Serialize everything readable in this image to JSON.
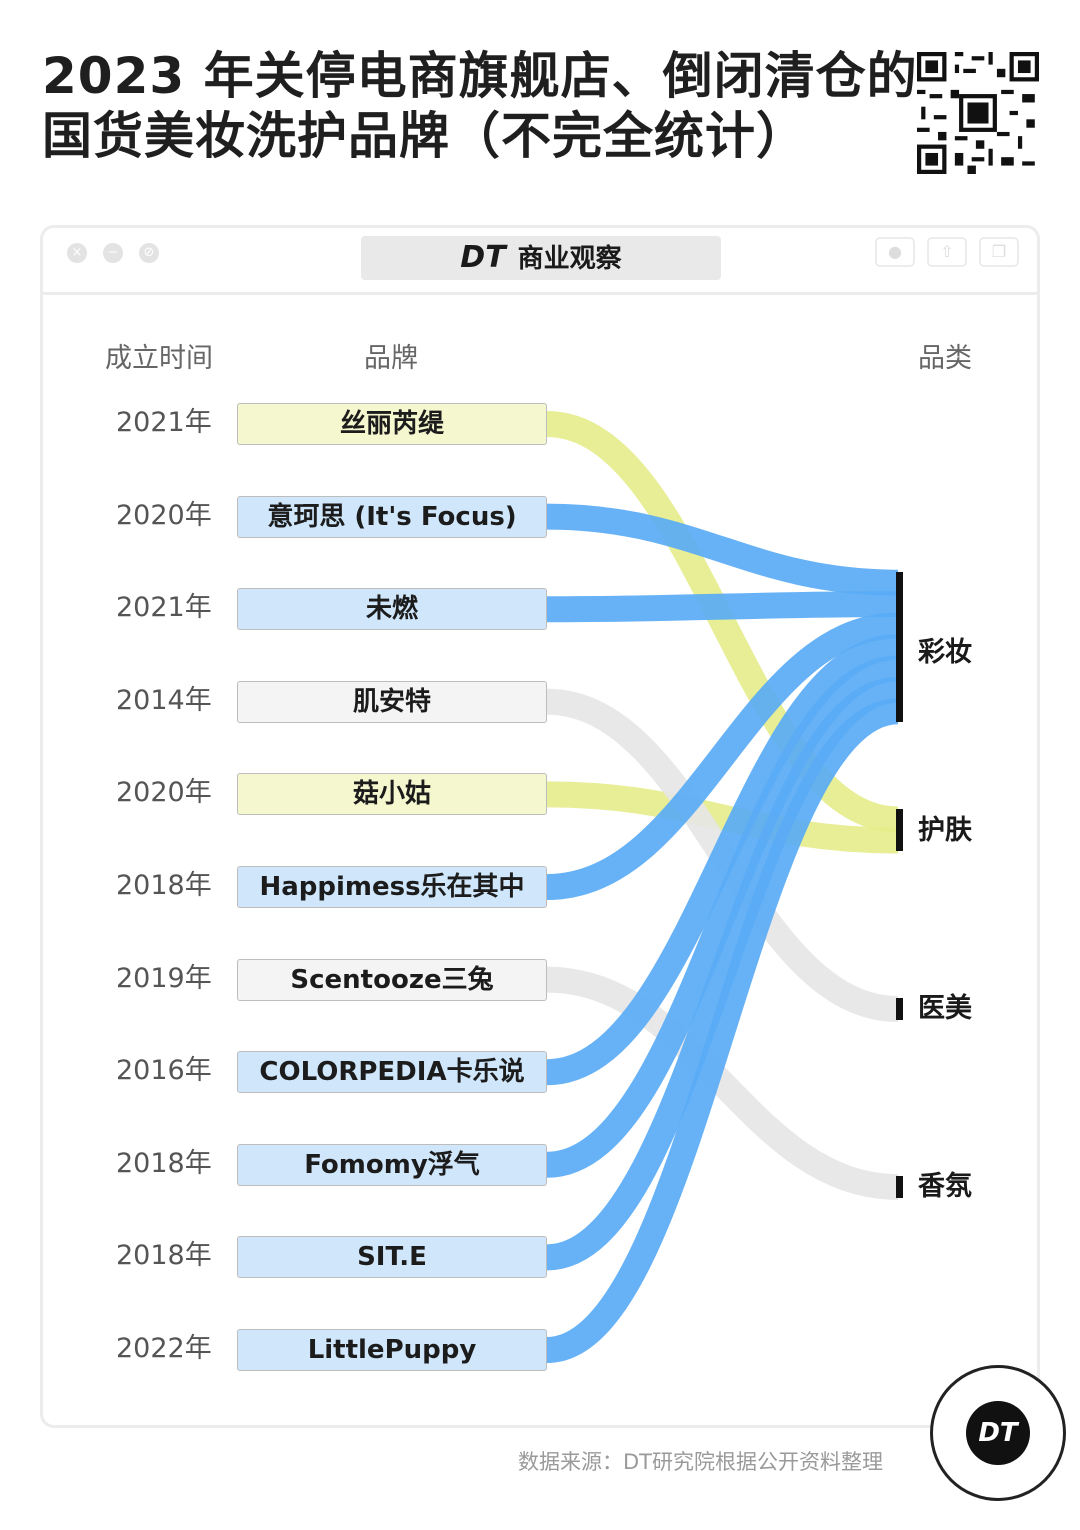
{
  "title_lines": [
    "2023 年关停电商旗舰店、倒闭清仓的",
    "国货美妆洗护品牌（不完全统计）"
  ],
  "tab": {
    "logo": "DT",
    "label": "商业观察"
  },
  "chart_data": {
    "type": "sankey",
    "column_headers": {
      "year": "成立时间",
      "brand": "品牌",
      "category": "品类"
    },
    "brands": [
      {
        "name": "丝丽芮缇",
        "year": "2021年",
        "category": "护肤"
      },
      {
        "name": "意珂思 (It's Focus)",
        "year": "2020年",
        "category": "彩妆"
      },
      {
        "name": "未燃",
        "year": "2021年",
        "category": "彩妆"
      },
      {
        "name": "肌安特",
        "year": "2014年",
        "category": "医美"
      },
      {
        "name": "菇小姑",
        "year": "2020年",
        "category": "护肤"
      },
      {
        "name": "Happimess乐在其中",
        "year": "2018年",
        "category": "彩妆"
      },
      {
        "name": "Scentooze三兔",
        "year": "2019年",
        "category": "香氛"
      },
      {
        "name": "COLORPEDIA卡乐说",
        "year": "2016年",
        "category": "彩妆"
      },
      {
        "name": "Fomomy浮气",
        "year": "2018年",
        "category": "彩妆"
      },
      {
        "name": "SIT.E",
        "year": "2018年",
        "category": "彩妆"
      },
      {
        "name": "LittlePuppy",
        "year": "2022年",
        "category": "彩妆"
      }
    ],
    "categories": [
      {
        "name": "彩妆",
        "count": 7
      },
      {
        "name": "护肤",
        "count": 2
      },
      {
        "name": "医美",
        "count": 1
      },
      {
        "name": "香氛",
        "count": 1
      }
    ]
  },
  "colors": {
    "彩妆": "#5aabf5",
    "护肤": "#e4ec8a",
    "医美": "#e6e6e6",
    "香氛": "#e6e6e6",
    "box_彩妆": "#cfe6fb",
    "box_护肤": "#f5f7cf",
    "box_other": "#f4f4f4"
  },
  "source": "数据来源：DT研究院根据公开资料整理",
  "badge": "DT"
}
